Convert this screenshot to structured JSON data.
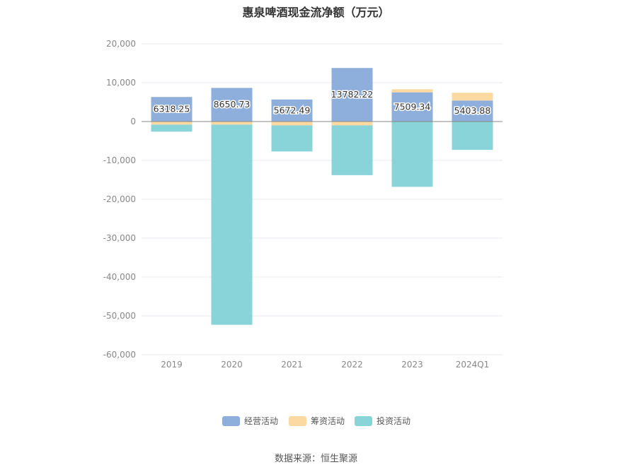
{
  "title": "惠泉啤酒现金流净额（万元）",
  "source": "数据来源：恒生聚源",
  "colors": {
    "operating": "#8eaedc",
    "financing": "#fbd9a0",
    "investing": "#88d4d9",
    "grid": "#e6e9f0",
    "zero_line": "#888888"
  },
  "chart_data": {
    "type": "bar",
    "stacked": true,
    "title": "惠泉啤酒现金流净额（万元）",
    "categories": [
      "2019",
      "2020",
      "2021",
      "2022",
      "2023",
      "2024Q1"
    ],
    "ylim": [
      -60000,
      20000
    ],
    "yticks": [
      20000,
      10000,
      0,
      -10000,
      -20000,
      -30000,
      -40000,
      -50000,
      -60000
    ],
    "ytick_labels": [
      "20,000",
      "10,000",
      "0",
      "-10,000",
      "-20,000",
      "-30,000",
      "-40,000",
      "-50,000",
      "-60,000"
    ],
    "grid": true,
    "legend_position": "bottom",
    "series": [
      {
        "name": "经营活动",
        "values": [
          6318.25,
          8650.73,
          5672.49,
          13782.22,
          7509.34,
          5403.88
        ],
        "labels": [
          "6318.25",
          "8650.73",
          "5672.49",
          "13782.22",
          "7509.34",
          "5403.88"
        ]
      },
      {
        "name": "筹资活动",
        "values": [
          -800,
          -800,
          -1000,
          -1000,
          800,
          2000
        ]
      },
      {
        "name": "投资活动",
        "values": [
          -1800,
          -51500,
          -6700,
          -12800,
          -16800,
          -7300
        ]
      }
    ]
  }
}
